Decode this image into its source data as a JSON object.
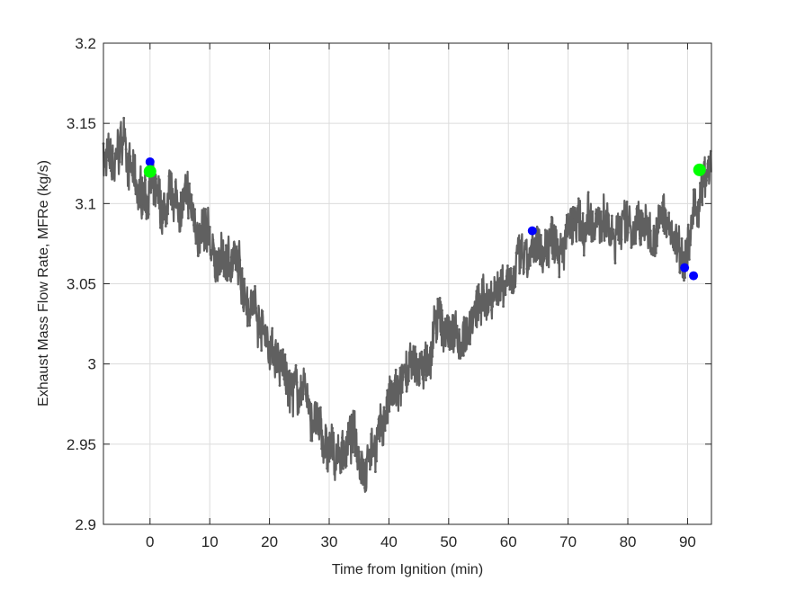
{
  "chart_data": {
    "type": "line",
    "title": "",
    "xlabel": "Time from Ignition (min)",
    "ylabel": "Exhaust Mass Flow Rate, MFRe (kg/s)",
    "xlim": [
      -7.8,
      94
    ],
    "ylim": [
      2.9,
      3.2
    ],
    "xticks": [
      0,
      10,
      20,
      30,
      40,
      50,
      60,
      70,
      80,
      90
    ],
    "yticks": [
      2.9,
      2.95,
      3.0,
      3.05,
      3.1,
      3.15,
      3.2
    ],
    "ytick_labels": [
      "2.9",
      "2.95",
      "3",
      "3.05",
      "3.1",
      "3.15",
      "3.2"
    ],
    "grid": true,
    "legend": "none",
    "series": [
      {
        "color": "#606060",
        "style": "line-with-dot-markers",
        "trend": [
          [
            -7.8,
            3.13
          ],
          [
            -6,
            3.118
          ],
          [
            -4.5,
            3.14
          ],
          [
            -3.5,
            3.128
          ],
          [
            -2,
            3.1
          ],
          [
            0,
            3.112
          ],
          [
            2,
            3.09
          ],
          [
            4,
            3.098
          ],
          [
            6,
            3.1
          ],
          [
            8,
            3.085
          ],
          [
            10,
            3.07
          ],
          [
            12,
            3.062
          ],
          [
            14,
            3.065
          ],
          [
            16,
            3.048
          ],
          [
            18,
            3.035
          ],
          [
            20,
            3.012
          ],
          [
            22,
            2.995
          ],
          [
            24,
            2.985
          ],
          [
            26,
            2.978
          ],
          [
            28,
            2.96
          ],
          [
            30,
            2.94
          ],
          [
            32,
            2.945
          ],
          [
            34,
            2.955
          ],
          [
            36,
            2.94
          ],
          [
            38,
            2.955
          ],
          [
            40,
            2.975
          ],
          [
            42,
            2.985
          ],
          [
            44,
            2.995
          ],
          [
            46,
            2.998
          ],
          [
            48,
            3.022
          ],
          [
            50,
            3.022
          ],
          [
            52,
            3.015
          ],
          [
            54,
            3.028
          ],
          [
            56,
            3.04
          ],
          [
            58,
            3.048
          ],
          [
            60,
            3.058
          ],
          [
            62,
            3.062
          ],
          [
            64,
            3.062
          ],
          [
            66,
            3.072
          ],
          [
            68,
            3.082
          ],
          [
            70,
            3.085
          ],
          [
            72,
            3.08
          ],
          [
            74,
            3.082
          ],
          [
            76,
            3.085
          ],
          [
            78,
            3.085
          ],
          [
            80,
            3.09
          ],
          [
            82,
            3.085
          ],
          [
            84,
            3.08
          ],
          [
            86,
            3.09
          ],
          [
            88,
            3.08
          ],
          [
            90,
            3.07
          ],
          [
            92,
            3.105
          ],
          [
            94,
            3.12
          ]
        ]
      }
    ],
    "markers": [
      {
        "color": "#0000ff",
        "points": [
          [
            0,
            3.126
          ],
          [
            64,
            3.083
          ],
          [
            89.5,
            3.06
          ],
          [
            91,
            3.055
          ]
        ]
      },
      {
        "color": "#00ff00",
        "points": [
          [
            0,
            3.12
          ],
          [
            92,
            3.121
          ]
        ]
      }
    ]
  }
}
